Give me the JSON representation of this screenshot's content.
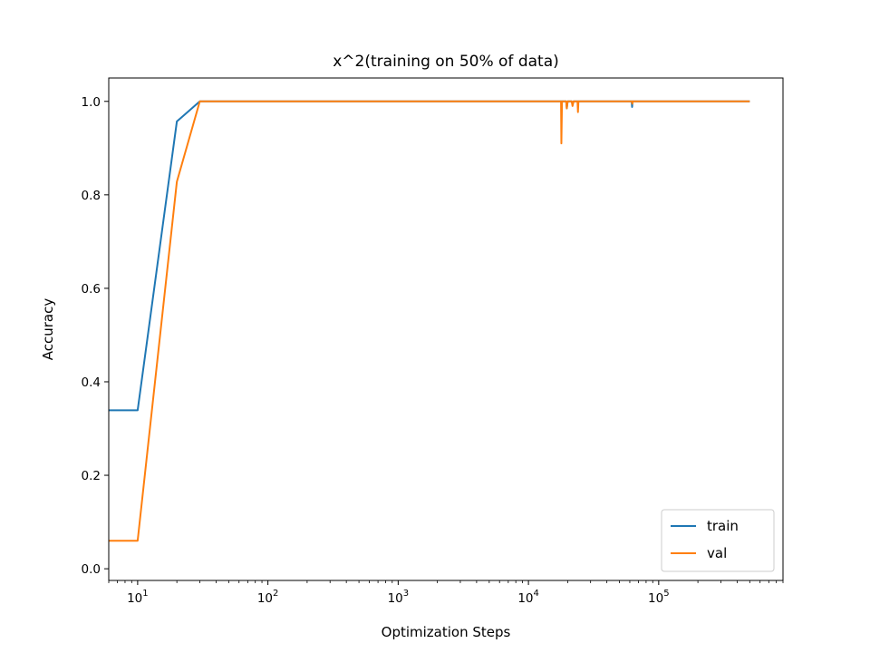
{
  "chart_data": {
    "type": "line",
    "title": "x^2(training on 50% of data)",
    "xlabel": "Optimization Steps",
    "ylabel": "Accuracy",
    "xscale": "log",
    "xlim": [
      6,
      900000
    ],
    "ylim": [
      -0.025,
      1.05
    ],
    "x_ticks": [
      {
        "value": 10,
        "base": "10",
        "exp": "1"
      },
      {
        "value": 100,
        "base": "10",
        "exp": "2"
      },
      {
        "value": 1000,
        "base": "10",
        "exp": "3"
      },
      {
        "value": 10000,
        "base": "10",
        "exp": "4"
      },
      {
        "value": 100000,
        "base": "10",
        "exp": "5"
      }
    ],
    "y_ticks": [
      {
        "value": 0.0,
        "label": "0.0"
      },
      {
        "value": 0.2,
        "label": "0.2"
      },
      {
        "value": 0.4,
        "label": "0.4"
      },
      {
        "value": 0.6,
        "label": "0.6"
      },
      {
        "value": 0.8,
        "label": "0.8"
      },
      {
        "value": 1.0,
        "label": "1.0"
      }
    ],
    "grid": false,
    "legend_position": "lower-right",
    "series": [
      {
        "name": "train",
        "color": "#1f77b4",
        "points": [
          [
            1,
            0.339
          ],
          [
            10,
            0.339
          ],
          [
            20,
            0.957
          ],
          [
            30,
            1.0
          ],
          [
            19500,
            1.0
          ],
          [
            19700,
            0.985
          ],
          [
            20000,
            1.0
          ],
          [
            21500,
            1.0
          ],
          [
            21800,
            0.993
          ],
          [
            22200,
            1.0
          ],
          [
            62000,
            1.0
          ],
          [
            62500,
            0.988
          ],
          [
            63000,
            1.0
          ],
          [
            500000,
            1.0
          ]
        ]
      },
      {
        "name": "val",
        "color": "#ff7f0e",
        "points": [
          [
            1,
            0.06
          ],
          [
            10,
            0.06
          ],
          [
            20,
            0.828
          ],
          [
            30,
            1.0
          ],
          [
            17800,
            1.0
          ],
          [
            17900,
            0.91
          ],
          [
            18100,
            1.0
          ],
          [
            19500,
            1.0
          ],
          [
            19700,
            0.985
          ],
          [
            20000,
            1.0
          ],
          [
            21500,
            1.0
          ],
          [
            21800,
            0.99
          ],
          [
            22200,
            1.0
          ],
          [
            23800,
            1.0
          ],
          [
            24000,
            0.977
          ],
          [
            24200,
            1.0
          ],
          [
            62500,
            1.0
          ],
          [
            62700,
            0.995
          ],
          [
            63000,
            1.0
          ],
          [
            500000,
            1.0
          ]
        ]
      }
    ]
  }
}
